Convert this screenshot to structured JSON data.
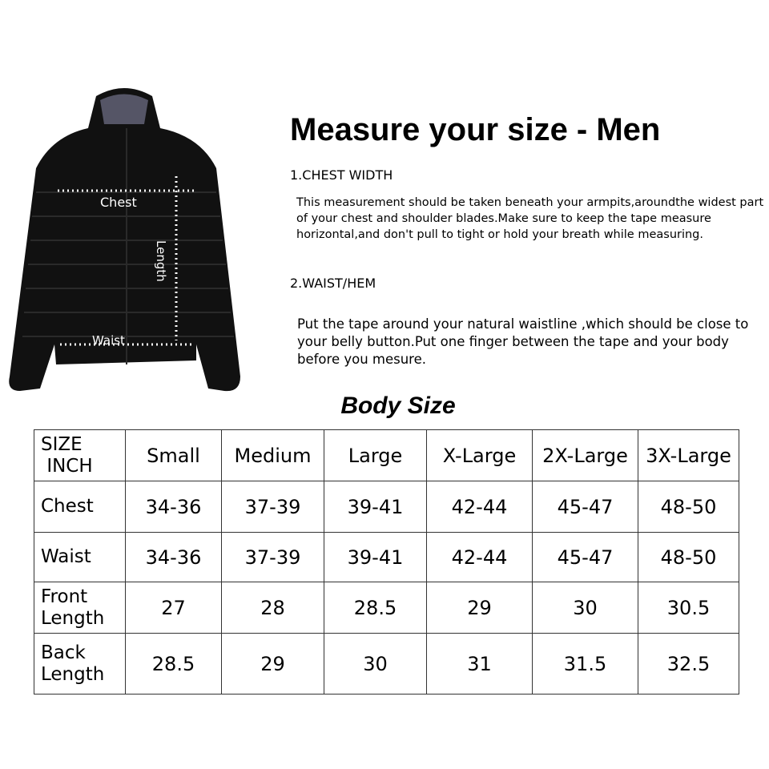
{
  "title": "Measure your size - Men",
  "sections": [
    {
      "heading": "1.CHEST WIDTH",
      "text": "This measurement should be taken beneath your armpits,aroundthe widest part of your chest and shoulder blades.Make sure to keep the tape measure horizontal,and don't pull to tight or hold your breath while measuring."
    },
    {
      "heading": "2.WAIST/HEM",
      "text": "Put the tape around your natural waistline ,which should be close to your belly button.Put one finger between the tape and your body before you mesure."
    }
  ],
  "jacket_labels": {
    "chest": "Chest",
    "length": "Length",
    "waist": "Waist"
  },
  "table": {
    "title": "Body Size",
    "corner": [
      "SIZE",
      "INCH"
    ],
    "columns": [
      "Small",
      "Medium",
      "Large",
      "X-Large",
      "2X-Large",
      "3X-Large"
    ],
    "rows": [
      {
        "label": [
          "Chest"
        ],
        "values": [
          "34-36",
          "37-39",
          "39-41",
          "42-44",
          "45-47",
          "48-50"
        ]
      },
      {
        "label": [
          "Waist"
        ],
        "values": [
          "34-36",
          "37-39",
          "39-41",
          "42-44",
          "45-47",
          "48-50"
        ]
      },
      {
        "label": [
          "Front",
          "Length"
        ],
        "values": [
          "27",
          "28",
          "28.5",
          "29",
          "30",
          "30.5"
        ]
      },
      {
        "label": [
          "Back",
          "Length"
        ],
        "values": [
          "28.5",
          "29",
          "30",
          "31",
          "31.5",
          "32.5"
        ]
      }
    ]
  }
}
